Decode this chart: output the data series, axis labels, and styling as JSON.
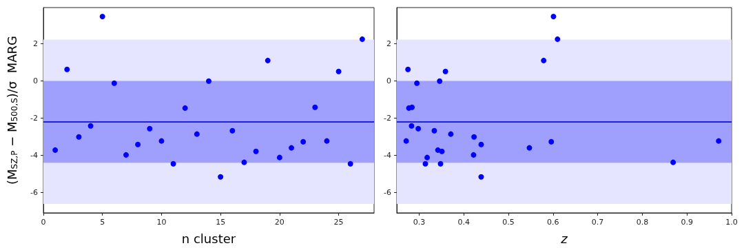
{
  "chart_data": [
    {
      "type": "scatter",
      "xlabel": "n cluster",
      "ylabel": "(M$_{SZ,P}$ − M$_{500,S}$)/σ  MARG",
      "marker": "circle",
      "grid": false,
      "xlim": [
        0,
        28
      ],
      "xticks": [
        0,
        5,
        10,
        15,
        20,
        25
      ],
      "ylim": [
        -7.1,
        3.95
      ],
      "yticks": [
        -6,
        -4,
        -2,
        0,
        2
      ],
      "x": [
        1,
        2,
        3,
        4,
        5,
        6,
        7,
        8,
        9,
        10,
        11,
        12,
        13,
        14,
        15,
        16,
        17,
        18,
        19,
        20,
        21,
        22,
        23,
        24,
        25,
        26,
        27
      ],
      "series": [
        {
          "color": "#0000ff",
          "values": [
            -3.72,
            0.62,
            -3.01,
            -2.42,
            3.47,
            -0.12,
            -3.98,
            -3.42,
            -2.57,
            -3.23,
            -4.46,
            -1.46,
            -2.86,
            -0.01,
            -5.16,
            -2.68,
            -4.38,
            -3.79,
            1.1,
            -4.12,
            -3.6,
            -3.27,
            -1.42,
            -3.23,
            0.51,
            -4.46,
            2.25
          ]
        }
      ],
      "bands": [
        {
          "axis": "y",
          "from": -6.62,
          "to": 2.23,
          "color": "#e5e5ff"
        },
        {
          "axis": "y",
          "from": -4.4,
          "to": 0,
          "color": "#9f9ffe"
        }
      ],
      "ref_lines": [
        {
          "axis": "y",
          "value": -2.18,
          "label": null,
          "color": "#1f1fe6",
          "line_style": "solid"
        }
      ]
    },
    {
      "type": "scatter",
      "xlabel": "z",
      "marker": "circle",
      "grid": false,
      "xlim": [
        0.25,
        1.0
      ],
      "xticks": [
        0.3,
        0.4,
        0.5,
        0.6,
        0.7,
        0.8,
        0.9,
        {
          "value": 1,
          "label": "1.0"
        }
      ],
      "ylim": [
        -7.1,
        3.95
      ],
      "yticks": [
        -6,
        -4,
        -2,
        0,
        2
      ],
      "x": [
        0.271,
        0.275,
        0.277,
        0.284,
        0.283,
        0.295,
        0.298,
        0.314,
        0.318,
        0.334,
        0.342,
        0.346,
        0.348,
        0.351,
        0.359,
        0.371,
        0.422,
        0.423,
        0.439,
        0.439,
        0.547,
        0.579,
        0.596,
        0.601,
        0.61,
        0.869,
        0.971
      ],
      "series": [
        {
          "color": "#0000ff",
          "values": [
            -3.23,
            0.62,
            -1.46,
            -1.42,
            -2.42,
            -0.12,
            -2.57,
            -4.46,
            -4.12,
            -2.68,
            -3.72,
            -0.01,
            -4.46,
            -3.79,
            0.51,
            -2.86,
            -3.98,
            -3.01,
            -3.42,
            -5.16,
            -3.6,
            1.1,
            -3.27,
            3.47,
            2.25,
            -4.38,
            -3.23
          ]
        }
      ],
      "bands": [
        {
          "axis": "y",
          "from": -6.62,
          "to": 2.23,
          "color": "#e5e5ff"
        },
        {
          "axis": "y",
          "from": -4.4,
          "to": 0,
          "color": "#9f9ffe"
        }
      ],
      "ref_lines": [
        {
          "axis": "y",
          "value": -2.18,
          "label": null,
          "color": "#1f1fe6",
          "line_style": "solid"
        }
      ]
    }
  ]
}
